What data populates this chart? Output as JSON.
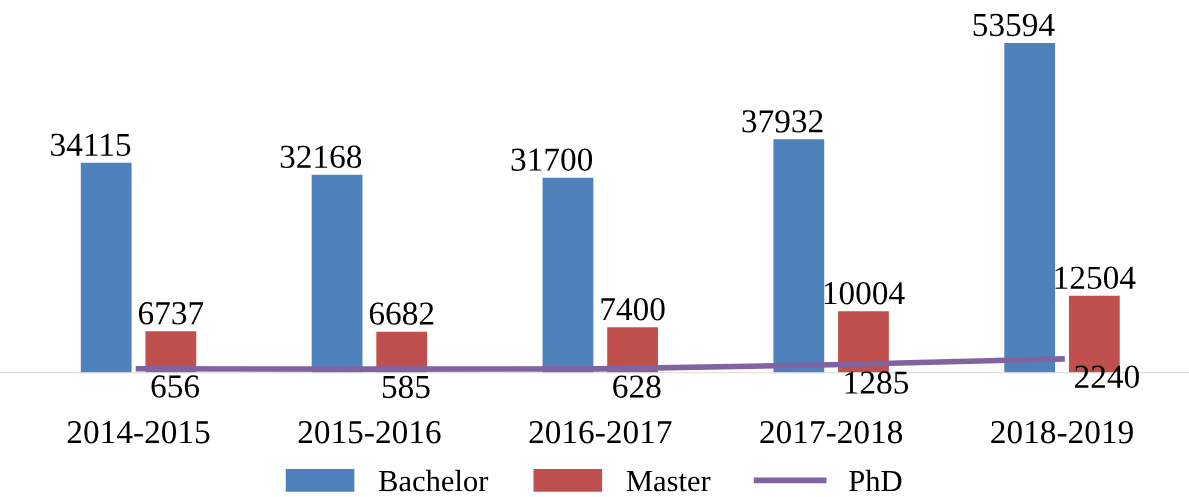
{
  "chart_data": {
    "type": "bar",
    "categories": [
      "2014-2015",
      "2015-2016",
      "2016-2017",
      "2017-2018",
      "2018-2019"
    ],
    "series": [
      {
        "name": "Bachelor",
        "color": "#4f81bd",
        "values": [
          34115,
          32168,
          31700,
          37932,
          53594
        ]
      },
      {
        "name": "Master",
        "color": "#c0504d",
        "values": [
          6737,
          6682,
          7400,
          10004,
          12504
        ]
      },
      {
        "name": "PhD",
        "type": "line",
        "color": "#8064a2",
        "values": [
          656,
          585,
          628,
          1285,
          2240
        ]
      }
    ],
    "data_labels": true,
    "grid": false,
    "legend": "bottom"
  }
}
